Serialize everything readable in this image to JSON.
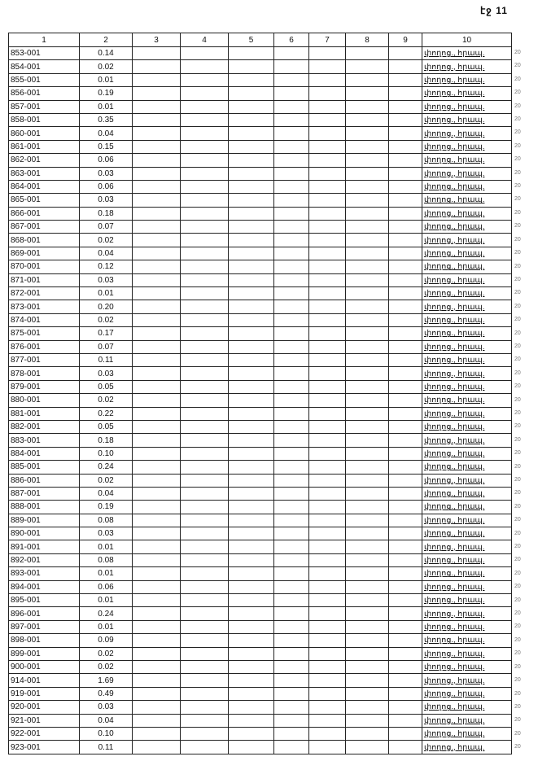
{
  "page_label": "էջ 11",
  "table": {
    "headers": [
      "1",
      "2",
      "3",
      "4",
      "5",
      "6",
      "7",
      "8",
      "9",
      "10"
    ],
    "street_label": "փողոց., հրապ.",
    "margin_mark": "20",
    "rows": [
      {
        "id": "853-001",
        "value": "0.14"
      },
      {
        "id": "854-001",
        "value": "0.02"
      },
      {
        "id": "855-001",
        "value": "0.01"
      },
      {
        "id": "856-001",
        "value": "0.19"
      },
      {
        "id": "857-001",
        "value": "0.01"
      },
      {
        "id": "858-001",
        "value": "0.35"
      },
      {
        "id": "860-001",
        "value": "0.04"
      },
      {
        "id": "861-001",
        "value": "0.15"
      },
      {
        "id": "862-001",
        "value": "0.06"
      },
      {
        "id": "863-001",
        "value": "0.03"
      },
      {
        "id": "864-001",
        "value": "0.06"
      },
      {
        "id": "865-001",
        "value": "0.03"
      },
      {
        "id": "866-001",
        "value": "0.18"
      },
      {
        "id": "867-001",
        "value": "0.07"
      },
      {
        "id": "868-001",
        "value": "0.02"
      },
      {
        "id": "869-001",
        "value": "0.04"
      },
      {
        "id": "870-001",
        "value": "0.12"
      },
      {
        "id": "871-001",
        "value": "0.03"
      },
      {
        "id": "872-001",
        "value": "0.01"
      },
      {
        "id": "873-001",
        "value": "0.20"
      },
      {
        "id": "874-001",
        "value": "0.02"
      },
      {
        "id": "875-001",
        "value": "0.17"
      },
      {
        "id": "876-001",
        "value": "0.07"
      },
      {
        "id": "877-001",
        "value": "0.11"
      },
      {
        "id": "878-001",
        "value": "0.03"
      },
      {
        "id": "879-001",
        "value": "0.05"
      },
      {
        "id": "880-001",
        "value": "0.02"
      },
      {
        "id": "881-001",
        "value": "0.22"
      },
      {
        "id": "882-001",
        "value": "0.05"
      },
      {
        "id": "883-001",
        "value": "0.18"
      },
      {
        "id": "884-001",
        "value": "0.10"
      },
      {
        "id": "885-001",
        "value": "0.24"
      },
      {
        "id": "886-001",
        "value": "0.02"
      },
      {
        "id": "887-001",
        "value": "0.04"
      },
      {
        "id": "888-001",
        "value": "0.19"
      },
      {
        "id": "889-001",
        "value": "0.08"
      },
      {
        "id": "890-001",
        "value": "0.03"
      },
      {
        "id": "891-001",
        "value": "0.01"
      },
      {
        "id": "892-001",
        "value": "0.08"
      },
      {
        "id": "893-001",
        "value": "0.01"
      },
      {
        "id": "894-001",
        "value": "0.06"
      },
      {
        "id": "895-001",
        "value": "0.01"
      },
      {
        "id": "896-001",
        "value": "0.24"
      },
      {
        "id": "897-001",
        "value": "0.01"
      },
      {
        "id": "898-001",
        "value": "0.09"
      },
      {
        "id": "899-001",
        "value": "0.02"
      },
      {
        "id": "900-001",
        "value": "0.02"
      },
      {
        "id": "914-001",
        "value": "1.69"
      },
      {
        "id": "919-001",
        "value": "0.49"
      },
      {
        "id": "920-001",
        "value": "0.03"
      },
      {
        "id": "921-001",
        "value": "0.04"
      },
      {
        "id": "922-001",
        "value": "0.10"
      },
      {
        "id": "923-001",
        "value": "0.11"
      }
    ]
  }
}
